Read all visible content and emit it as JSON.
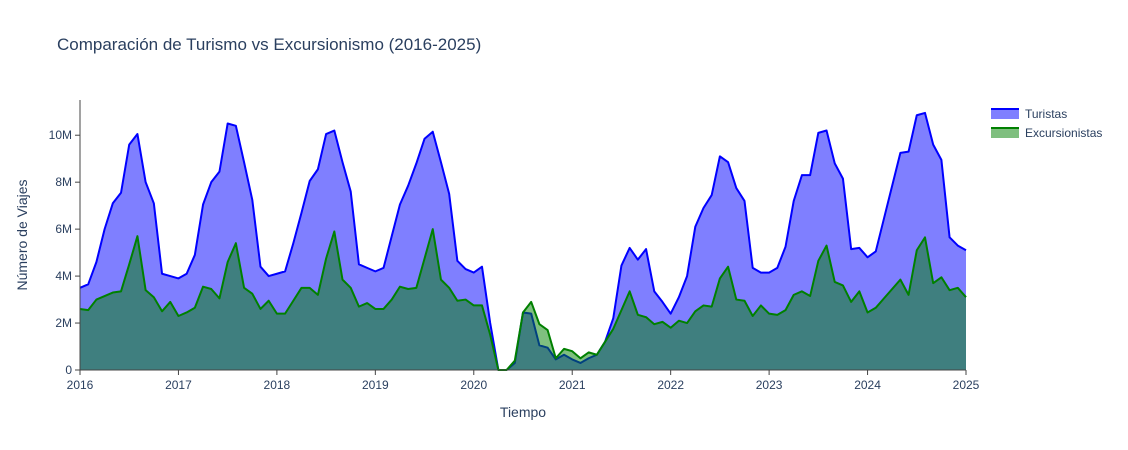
{
  "chart_data": {
    "type": "area",
    "title": "Comparación de Turismo vs Excursionismo (2016-2025)",
    "xlabel": "Tiempo",
    "ylabel": "Número de Viajes",
    "x_range": [
      2016,
      2025
    ],
    "ylim": [
      0,
      11500000
    ],
    "x_ticks": [
      {
        "value": 2016,
        "label": "2016"
      },
      {
        "value": 2017,
        "label": "2017"
      },
      {
        "value": 2018,
        "label": "2018"
      },
      {
        "value": 2019,
        "label": "2019"
      },
      {
        "value": 2020,
        "label": "2020"
      },
      {
        "value": 2021,
        "label": "2021"
      },
      {
        "value": 2022,
        "label": "2022"
      },
      {
        "value": 2023,
        "label": "2023"
      },
      {
        "value": 2024,
        "label": "2024"
      },
      {
        "value": 2025,
        "label": "2025"
      }
    ],
    "y_ticks": [
      {
        "value": 0,
        "label": "0"
      },
      {
        "value": 2000000,
        "label": "2M"
      },
      {
        "value": 4000000,
        "label": "4M"
      },
      {
        "value": 6000000,
        "label": "6M"
      },
      {
        "value": 8000000,
        "label": "8M"
      },
      {
        "value": 10000000,
        "label": "10M"
      }
    ],
    "grid": false,
    "legend_position": "top-right",
    "series": [
      {
        "name": "Turistas",
        "line_color": "#0000ff",
        "fill_color": "rgba(0,0,255,0.5)",
        "values": [
          3.5,
          3.65,
          4.6,
          6.0,
          7.1,
          7.55,
          9.6,
          10.05,
          8.0,
          7.1,
          4.1,
          4.0,
          3.9,
          4.1,
          4.9,
          7.05,
          8.0,
          8.45,
          10.5,
          10.4,
          8.85,
          7.25,
          4.4,
          4.0,
          4.1,
          4.2,
          5.4,
          6.7,
          8.05,
          8.55,
          10.05,
          10.2,
          8.85,
          7.6,
          4.5,
          4.35,
          4.2,
          4.35,
          5.7,
          7.05,
          7.85,
          8.8,
          9.85,
          10.15,
          8.85,
          7.5,
          4.65,
          4.3,
          4.15,
          4.4,
          2.0,
          0.0,
          0.0,
          0.3,
          2.45,
          2.4,
          1.05,
          0.95,
          0.45,
          0.65,
          0.45,
          0.3,
          0.5,
          0.65,
          1.2,
          2.2,
          4.45,
          5.2,
          4.7,
          5.15,
          3.35,
          2.9,
          2.4,
          3.1,
          4.0,
          6.1,
          6.9,
          7.45,
          9.1,
          8.85,
          7.75,
          7.2,
          4.35,
          4.15,
          4.15,
          4.35,
          5.25,
          7.2,
          8.3,
          8.3,
          10.1,
          10.2,
          8.8,
          8.15,
          5.15,
          5.2,
          4.8,
          5.05,
          6.45,
          7.85,
          9.25,
          9.3,
          10.85,
          10.95,
          9.6,
          8.95,
          5.65,
          5.3,
          5.1
        ]
      },
      {
        "name": "Excursionistas",
        "line_color": "#008000",
        "fill_color": "rgba(0,128,0,0.5)",
        "values": [
          2.6,
          2.55,
          3.0,
          3.15,
          3.3,
          3.35,
          4.5,
          5.7,
          3.4,
          3.1,
          2.5,
          2.9,
          2.3,
          2.45,
          2.65,
          3.55,
          3.45,
          3.05,
          4.6,
          5.4,
          3.5,
          3.25,
          2.6,
          2.95,
          2.4,
          2.4,
          2.95,
          3.5,
          3.5,
          3.2,
          4.75,
          5.9,
          3.85,
          3.5,
          2.7,
          2.85,
          2.6,
          2.6,
          3.0,
          3.55,
          3.45,
          3.5,
          4.75,
          6.0,
          3.85,
          3.5,
          2.95,
          3.0,
          2.75,
          2.75,
          1.5,
          0.0,
          0.0,
          0.4,
          2.45,
          2.9,
          1.95,
          1.7,
          0.5,
          0.9,
          0.8,
          0.5,
          0.75,
          0.65,
          1.2,
          1.75,
          2.55,
          3.35,
          2.35,
          2.25,
          1.95,
          2.05,
          1.8,
          2.1,
          2.0,
          2.5,
          2.75,
          2.7,
          3.9,
          4.4,
          3.0,
          2.95,
          2.3,
          2.75,
          2.4,
          2.35,
          2.55,
          3.2,
          3.35,
          3.15,
          4.65,
          5.3,
          3.75,
          3.6,
          2.9,
          3.35,
          2.45,
          2.65,
          3.05,
          3.45,
          3.85,
          3.2,
          5.1,
          5.65,
          3.7,
          3.95,
          3.4,
          3.5,
          3.1
        ]
      }
    ]
  }
}
